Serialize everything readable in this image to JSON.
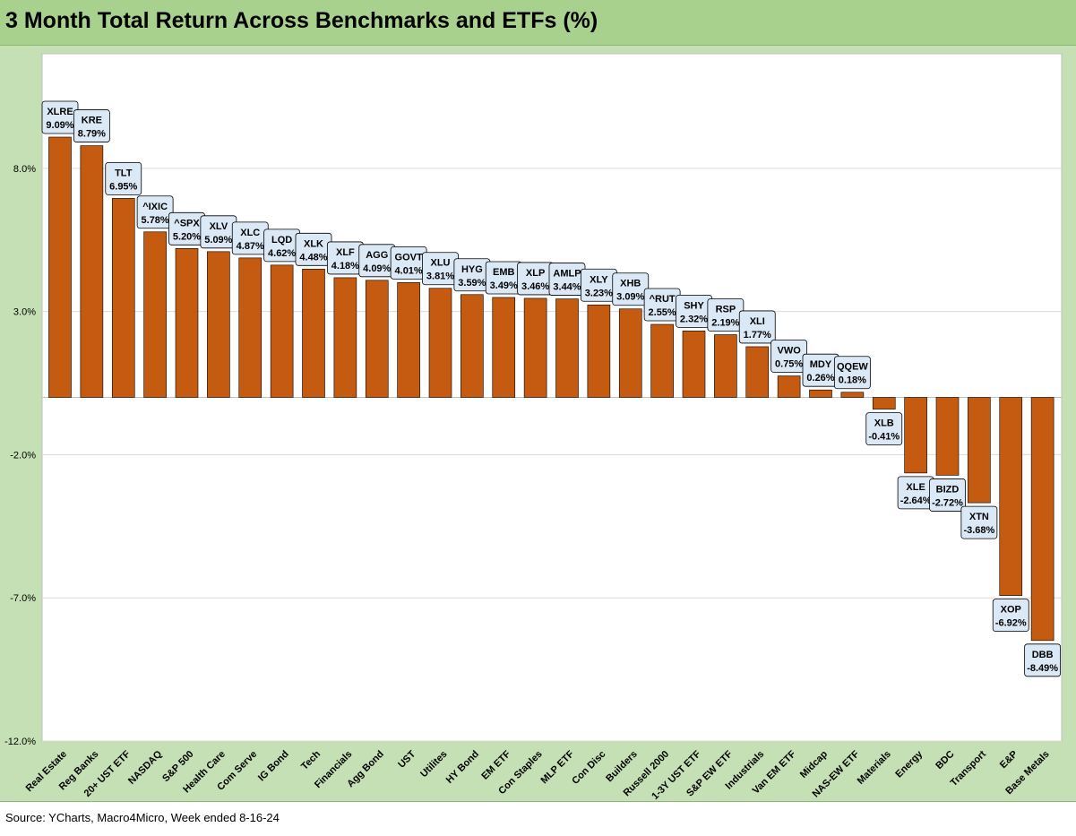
{
  "title": "3 Month Total Return Across Benchmarks and ETFs (%)",
  "source": "Source: YCharts, Macro4Micro, Week ended 8-16-24",
  "colors": {
    "bar": "#c55a11",
    "label_box": "#dbe9f7",
    "background": "#c5e0b4",
    "title_bar": "#a9d18e",
    "gridline": "#d9d9d9"
  },
  "chart_data": {
    "type": "bar",
    "title": "3 Month Total Return Across Benchmarks and ETFs (%)",
    "xlabel": "",
    "ylabel": "",
    "ylim": [
      -12.0,
      12.0
    ],
    "yticks": [
      "-12.0%",
      "-7.0%",
      "-2.0%",
      "3.0%",
      "8.0%"
    ],
    "ytick_values": [
      -12.0,
      -7.0,
      -2.0,
      3.0,
      8.0
    ],
    "grid": true,
    "categories": [
      "Real Estate",
      "Reg Banks",
      "20+ UST ETF",
      "NASDAQ",
      "S&P 500",
      "Health Care",
      "Com Serve",
      "IG Bond",
      "Tech",
      "Financials",
      "Agg Bond",
      "UST",
      "Utilites",
      "HY Bond",
      "EM ETF",
      "Con Staples",
      "MLP ETF",
      "Con Disc",
      "Builders",
      "Russell 2000",
      "1-3Y UST ETF",
      "S&P EW ETF",
      "Industrials",
      "Van EM ETF",
      "Midcap",
      "NAS-EW ETF",
      "Materials",
      "Energy",
      "BDC",
      "Transport",
      "E&P",
      "Base Metals"
    ],
    "tickers": [
      "XLRE",
      "KRE",
      "TLT",
      "^IXIC",
      "^SPX",
      "XLV",
      "XLC",
      "LQD",
      "XLK",
      "XLF",
      "AGG",
      "GOVT",
      "XLU",
      "HYG",
      "EMB",
      "XLP",
      "AMLP",
      "XLY",
      "XHB",
      "^RUT",
      "SHY",
      "RSP",
      "XLI",
      "VWO",
      "MDY",
      "QQEW",
      "XLB",
      "XLE",
      "BIZD",
      "XTN",
      "XOP",
      "DBB"
    ],
    "values": [
      9.09,
      8.79,
      6.95,
      5.78,
      5.2,
      5.09,
      4.87,
      4.62,
      4.48,
      4.18,
      4.09,
      4.01,
      3.81,
      3.59,
      3.49,
      3.46,
      3.44,
      3.23,
      3.09,
      2.55,
      2.32,
      2.19,
      1.77,
      0.75,
      0.26,
      0.18,
      -0.41,
      -2.64,
      -2.72,
      -3.68,
      -6.92,
      -8.49
    ],
    "value_labels": [
      "9.09%",
      "8.79%",
      "6.95%",
      "5.78%",
      "5.20%",
      "5.09%",
      "4.87%",
      "4.62%",
      "4.48%",
      "4.18%",
      "4.09%",
      "4.01%",
      "3.81%",
      "3.59%",
      "3.49%",
      "3.46%",
      "3.44%",
      "3.23%",
      "3.09%",
      "2.55%",
      "2.32%",
      "2.19%",
      "1.77%",
      "0.75%",
      "0.26%",
      "0.18%",
      "-0.41%",
      "-2.64%",
      "-2.72%",
      "-3.68%",
      "-6.92%",
      "-8.49%"
    ]
  }
}
